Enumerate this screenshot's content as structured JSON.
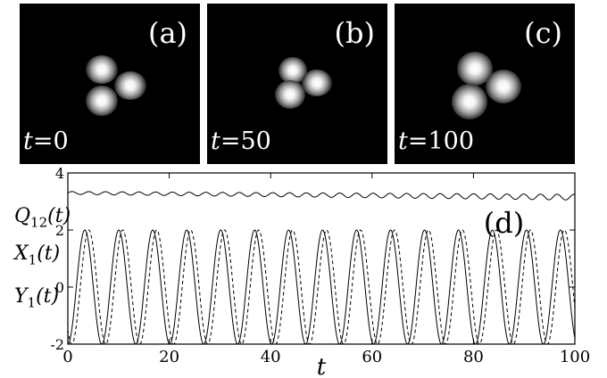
{
  "panels": [
    {
      "label": "(a)",
      "time_prefix": "t",
      "time_value": "=0"
    },
    {
      "label": "(b)",
      "time_prefix": "t",
      "time_value": "=50"
    },
    {
      "label": "(c)",
      "time_prefix": "t",
      "time_value": "=100"
    }
  ],
  "chart_data": {
    "type": "line",
    "panel_label": "(d)",
    "xlabel": "t",
    "xlim": [
      0,
      100
    ],
    "ylim": [
      -2,
      4
    ],
    "x_ticks": [
      "0",
      "20",
      "40",
      "60",
      "80",
      "100"
    ],
    "y_ticks": [
      "-2",
      "0",
      "2",
      "4"
    ],
    "y_axis_labels": {
      "Q": {
        "main": "Q",
        "sub": "12",
        "arg": "(t)"
      },
      "X": {
        "main": "X",
        "sub": "1",
        "arg": "(t)"
      },
      "Y": {
        "main": "Y",
        "sub": "1",
        "arg": "(t)"
      }
    },
    "series": [
      {
        "key": "Q12",
        "style": "solid",
        "mean": 3.3,
        "amplitude": 0.05,
        "period": 3.3,
        "drift_per_100": -0.15
      },
      {
        "key": "X1",
        "style": "solid",
        "amplitude": 2.0,
        "period": 6.7,
        "phase": -1.57
      },
      {
        "key": "Y1",
        "style": "dashed",
        "amplitude": 2.0,
        "period": 6.7,
        "phase": -2.3
      }
    ]
  }
}
